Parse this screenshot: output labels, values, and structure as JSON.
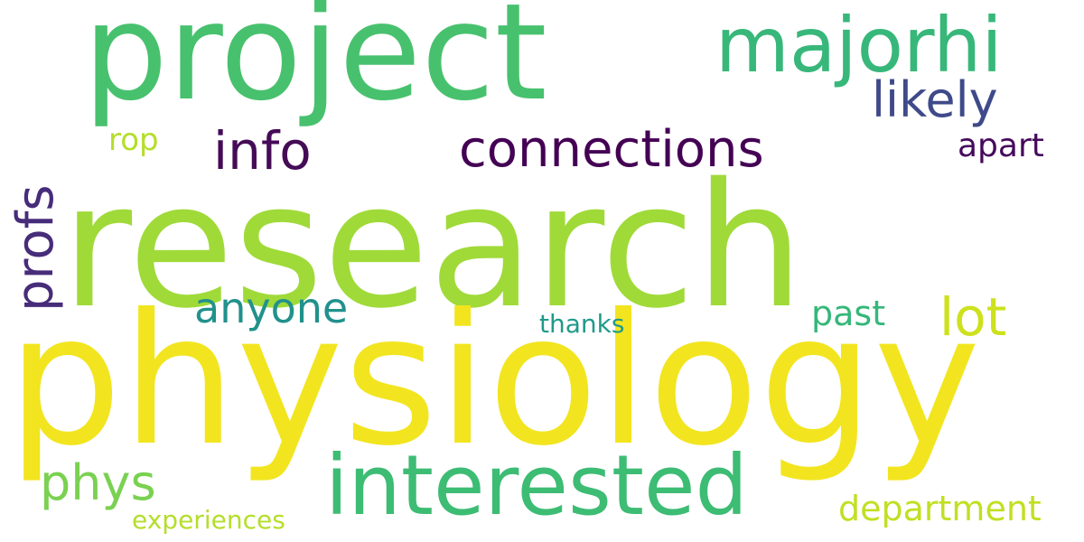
{
  "background": "#ffffff",
  "words": [
    {
      "id": "research",
      "text": "research",
      "color": "#a0da39",
      "vertical": false
    },
    {
      "id": "physiology",
      "text": "physiology",
      "color": "#f2e51f",
      "vertical": false
    },
    {
      "id": "project",
      "text": "project",
      "color": "#48c16e",
      "vertical": false
    },
    {
      "id": "majorhi",
      "text": "majorhi",
      "color": "#38b77a",
      "vertical": false
    },
    {
      "id": "interested",
      "text": "interested",
      "color": "#3dbc74",
      "vertical": false
    },
    {
      "id": "connections",
      "text": "connections",
      "color": "#440154",
      "vertical": false
    },
    {
      "id": "info",
      "text": "info",
      "color": "#450b57",
      "vertical": false
    },
    {
      "id": "likely",
      "text": "likely",
      "color": "#3e4a89",
      "vertical": false
    },
    {
      "id": "anyone",
      "text": "anyone",
      "color": "#21918c",
      "vertical": false
    },
    {
      "id": "lot",
      "text": "lot",
      "color": "#cde11d",
      "vertical": false
    },
    {
      "id": "phys",
      "text": "phys",
      "color": "#7ad151",
      "vertical": false
    },
    {
      "id": "past",
      "text": "past",
      "color": "#35b779",
      "vertical": false
    },
    {
      "id": "department",
      "text": "department",
      "color": "#c2df23",
      "vertical": false
    },
    {
      "id": "apart",
      "text": "apart",
      "color": "#46095d",
      "vertical": false
    },
    {
      "id": "rop",
      "text": "rop",
      "color": "#b5de2b",
      "vertical": false
    },
    {
      "id": "thanks",
      "text": "thanks",
      "color": "#1f9a8a",
      "vertical": false
    },
    {
      "id": "experiences",
      "text": "experiences",
      "color": "#b5de2b",
      "vertical": false
    },
    {
      "id": "profs",
      "text": "profs",
      "color": "#472c7a",
      "vertical": true
    }
  ]
}
